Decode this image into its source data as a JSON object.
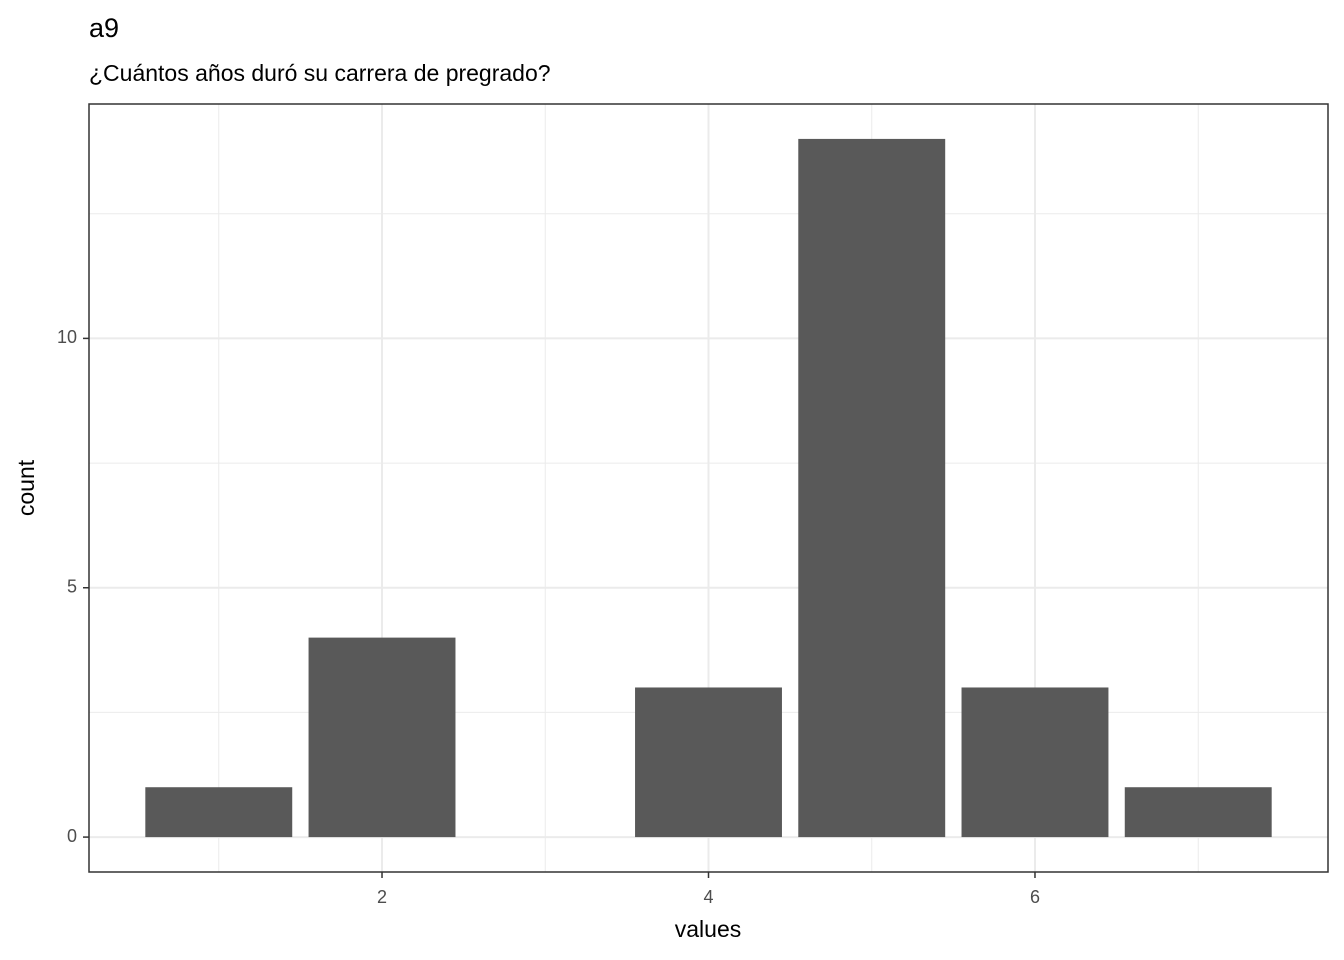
{
  "chart_data": {
    "type": "bar",
    "title": "a9",
    "subtitle": "¿Cuántos años duró su carrera de pregrado?",
    "x_label": "values",
    "y_label": "count",
    "x": [
      1,
      2,
      4,
      5,
      6,
      7
    ],
    "values": [
      1,
      4,
      3,
      14,
      3,
      1
    ],
    "color": "#595959",
    "xlim": [
      0.205,
      7.795
    ],
    "xticks": [
      2,
      4,
      6
    ],
    "ylim": [
      -0.7,
      14.7
    ],
    "yticks": [
      0,
      5,
      10
    ],
    "grid": true
  }
}
